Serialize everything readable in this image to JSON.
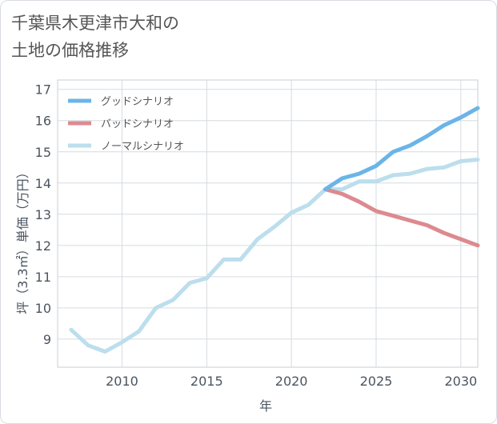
{
  "title_lines": [
    "千葉県木更津市大和の",
    "土地の価格推移"
  ],
  "chart_data": {
    "type": "line",
    "xlabel": "年",
    "ylabel": "坪（3.3㎡）単価（万円）",
    "xlim": [
      2006.2,
      2031
    ],
    "ylim": [
      8.1,
      17.3
    ],
    "x_ticks": [
      2010,
      2015,
      2020,
      2025,
      2030
    ],
    "y_ticks": [
      9,
      10,
      11,
      12,
      13,
      14,
      15,
      16,
      17
    ],
    "grid": true,
    "legend_position": "top-left",
    "series": [
      {
        "name": "グッドシナリオ",
        "color": "#6bb4e8",
        "x": [
          2022,
          2023,
          2024,
          2025,
          2026,
          2027,
          2028,
          2029,
          2030,
          2031
        ],
        "values": [
          13.8,
          14.15,
          14.3,
          14.55,
          15.0,
          15.2,
          15.5,
          15.85,
          16.1,
          16.4
        ]
      },
      {
        "name": "バッドシナリオ",
        "color": "#dc8a90",
        "x": [
          2022,
          2023,
          2024,
          2025,
          2026,
          2027,
          2028,
          2029,
          2030,
          2031
        ],
        "values": [
          13.8,
          13.65,
          13.4,
          13.1,
          12.95,
          12.8,
          12.65,
          12.4,
          12.2,
          12.0
        ]
      },
      {
        "name": "ノーマルシナリオ",
        "color": "#bcdeed",
        "x": [
          2007,
          2008,
          2009,
          2010,
          2011,
          2012,
          2013,
          2014,
          2015,
          2016,
          2017,
          2018,
          2019,
          2020,
          2021,
          2022,
          2023,
          2024,
          2025,
          2026,
          2027,
          2028,
          2029,
          2030,
          2031
        ],
        "values": [
          9.3,
          8.8,
          8.6,
          8.9,
          9.25,
          10.0,
          10.25,
          10.8,
          10.95,
          11.55,
          11.55,
          12.2,
          12.6,
          13.05,
          13.3,
          13.8,
          13.8,
          14.05,
          14.05,
          14.25,
          14.3,
          14.45,
          14.5,
          14.7,
          14.75
        ]
      }
    ]
  }
}
